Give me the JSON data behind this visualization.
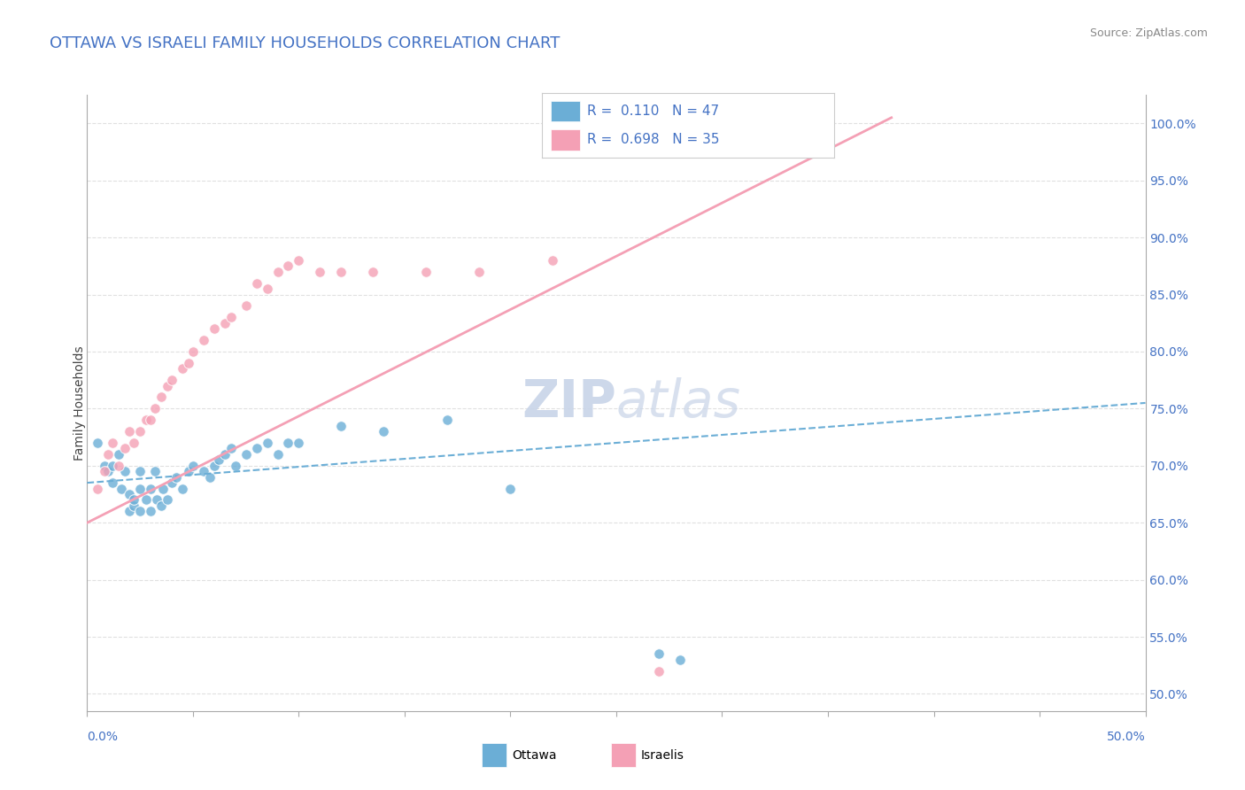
{
  "title": "OTTAWA VS ISRAELI FAMILY HOUSEHOLDS CORRELATION CHART",
  "source_text": "Source: ZipAtlas.com",
  "ylabel": "Family Households",
  "right_yticks": [
    "50.0%",
    "55.0%",
    "60.0%",
    "65.0%",
    "70.0%",
    "75.0%",
    "80.0%",
    "85.0%",
    "90.0%",
    "95.0%",
    "100.0%"
  ],
  "right_ytick_vals": [
    0.5,
    0.55,
    0.6,
    0.65,
    0.7,
    0.75,
    0.8,
    0.85,
    0.9,
    0.95,
    1.0
  ],
  "xlim": [
    0.0,
    0.5
  ],
  "ylim": [
    0.485,
    1.025
  ],
  "ottawa_color": "#6baed6",
  "israeli_color": "#f4a0b5",
  "ottawa_R": 0.11,
  "ottawa_N": 47,
  "israeli_R": 0.698,
  "israeli_N": 35,
  "watermark": "ZIPAtlas",
  "watermark_color": "#d0dff0",
  "title_color": "#4472c4",
  "legend_R_color": "#4472c4",
  "ottawa_scatter_x": [
    0.005,
    0.008,
    0.01,
    0.012,
    0.012,
    0.015,
    0.016,
    0.018,
    0.02,
    0.02,
    0.022,
    0.022,
    0.025,
    0.025,
    0.025,
    0.028,
    0.03,
    0.03,
    0.032,
    0.033,
    0.035,
    0.036,
    0.038,
    0.04,
    0.042,
    0.045,
    0.048,
    0.05,
    0.055,
    0.058,
    0.06,
    0.062,
    0.065,
    0.068,
    0.07,
    0.075,
    0.08,
    0.085,
    0.09,
    0.095,
    0.1,
    0.12,
    0.14,
    0.17,
    0.2,
    0.27,
    0.28
  ],
  "ottawa_scatter_y": [
    0.72,
    0.7,
    0.695,
    0.685,
    0.7,
    0.71,
    0.68,
    0.695,
    0.66,
    0.675,
    0.665,
    0.67,
    0.66,
    0.68,
    0.695,
    0.67,
    0.66,
    0.68,
    0.695,
    0.67,
    0.665,
    0.68,
    0.67,
    0.685,
    0.69,
    0.68,
    0.695,
    0.7,
    0.695,
    0.69,
    0.7,
    0.705,
    0.71,
    0.715,
    0.7,
    0.71,
    0.715,
    0.72,
    0.71,
    0.72,
    0.72,
    0.735,
    0.73,
    0.74,
    0.68,
    0.535,
    0.53
  ],
  "israeli_scatter_x": [
    0.005,
    0.008,
    0.01,
    0.012,
    0.015,
    0.018,
    0.02,
    0.022,
    0.025,
    0.028,
    0.03,
    0.032,
    0.035,
    0.038,
    0.04,
    0.045,
    0.048,
    0.05,
    0.055,
    0.06,
    0.065,
    0.068,
    0.075,
    0.08,
    0.085,
    0.09,
    0.095,
    0.1,
    0.11,
    0.12,
    0.135,
    0.16,
    0.185,
    0.22,
    0.27
  ],
  "israeli_scatter_y": [
    0.68,
    0.695,
    0.71,
    0.72,
    0.7,
    0.715,
    0.73,
    0.72,
    0.73,
    0.74,
    0.74,
    0.75,
    0.76,
    0.77,
    0.775,
    0.785,
    0.79,
    0.8,
    0.81,
    0.82,
    0.825,
    0.83,
    0.84,
    0.86,
    0.855,
    0.87,
    0.875,
    0.88,
    0.87,
    0.87,
    0.87,
    0.87,
    0.87,
    0.88,
    0.52
  ],
  "ottawa_trend_x": [
    0.0,
    0.5
  ],
  "ottawa_trend_y": [
    0.685,
    0.755
  ],
  "israeli_trend_x": [
    0.0,
    0.38
  ],
  "israeli_trend_y": [
    0.65,
    1.005
  ],
  "dashed_line_y": 1.005,
  "background_color": "#ffffff",
  "grid_color": "#e0e0e0",
  "title_fontsize": 13,
  "axis_fontsize": 10,
  "watermark_fontsize": 42
}
